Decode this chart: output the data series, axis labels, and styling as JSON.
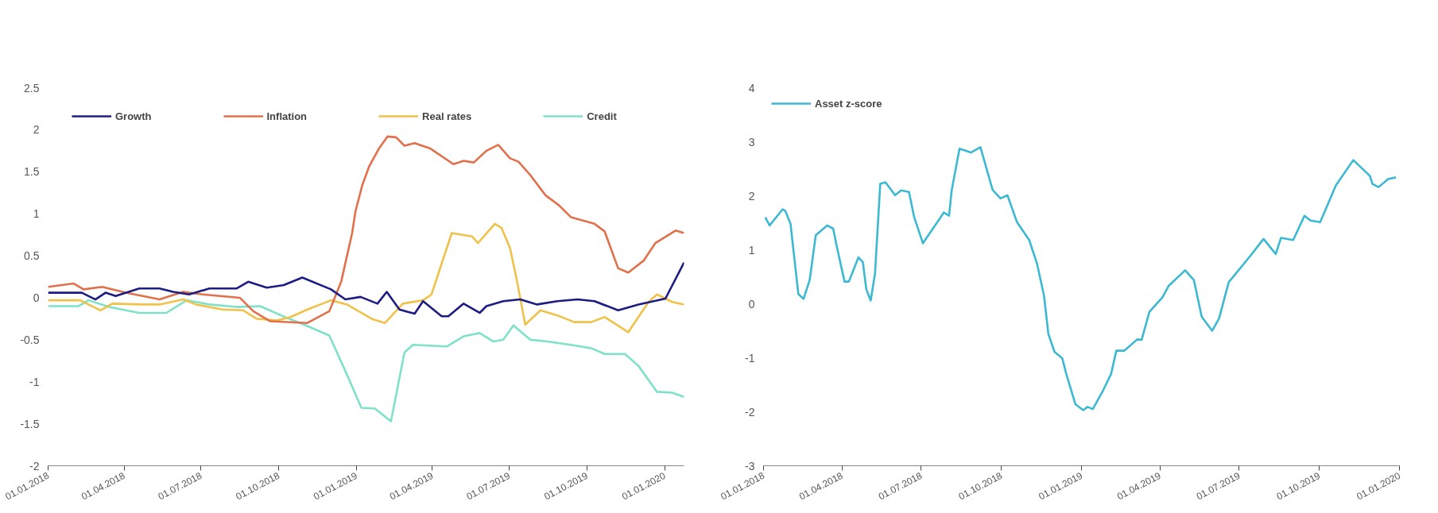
{
  "chart_data": [
    {
      "type": "line",
      "legend": "top",
      "xlim": [
        "2018-01-01",
        "2020-01-24"
      ],
      "ylim": [
        -2,
        2.5
      ],
      "xticks": [
        {
          "value": "2018-01-01",
          "label": "01.01.2018"
        },
        {
          "value": "2018-04-01",
          "label": "01.04.2018"
        },
        {
          "value": "2018-07-01",
          "label": "01.07.2018"
        },
        {
          "value": "2018-10-01",
          "label": "01.10.2018"
        },
        {
          "value": "2019-01-01",
          "label": "01.01.2019"
        },
        {
          "value": "2019-04-01",
          "label": "01.04.2019"
        },
        {
          "value": "2019-07-01",
          "label": "01.07.2019"
        },
        {
          "value": "2019-10-01",
          "label": "01.10.2019"
        },
        {
          "value": "2020-01-01",
          "label": "01.01.2020"
        }
      ],
      "yticks": [
        -2,
        -1.5,
        -1,
        -0.5,
        0,
        0.5,
        1,
        1.5,
        2,
        2.5
      ],
      "series": [
        {
          "name": "Growth",
          "color": "#1c1c84",
          "x": [
            "2018-01-01",
            "2018-02-10",
            "2018-02-26",
            "2018-03-10",
            "2018-03-22",
            "2018-04-19",
            "2018-05-13",
            "2018-05-29",
            "2018-06-17",
            "2018-07-11",
            "2018-08-12",
            "2018-08-26",
            "2018-09-17",
            "2018-10-07",
            "2018-10-29",
            "2018-12-02",
            "2018-12-19",
            "2019-01-06",
            "2019-01-26",
            "2019-02-06",
            "2019-02-21",
            "2019-03-11",
            "2019-03-21",
            "2019-04-12",
            "2019-04-20",
            "2019-05-08",
            "2019-05-27",
            "2019-06-04",
            "2019-06-24",
            "2019-07-14",
            "2019-08-03",
            "2019-08-27",
            "2019-09-20",
            "2019-10-10",
            "2019-11-07",
            "2019-12-01",
            "2020-01-02",
            "2020-01-24"
          ],
          "values": [
            0.06,
            0.06,
            -0.02,
            0.06,
            0.02,
            0.11,
            0.11,
            0.07,
            0.04,
            0.11,
            0.11,
            0.19,
            0.12,
            0.15,
            0.24,
            0.1,
            -0.02,
            0.01,
            -0.07,
            0.07,
            -0.14,
            -0.19,
            -0.04,
            -0.22,
            -0.22,
            -0.07,
            -0.18,
            -0.1,
            -0.04,
            -0.02,
            -0.08,
            -0.04,
            -0.02,
            -0.04,
            -0.15,
            -0.08,
            -0.01,
            0.42
          ]
        },
        {
          "name": "Inflation",
          "color": "#e2704a",
          "x": [
            "2018-01-01",
            "2018-01-31",
            "2018-02-12",
            "2018-03-06",
            "2018-04-03",
            "2018-05-13",
            "2018-06-10",
            "2018-07-03",
            "2018-08-16",
            "2018-09-01",
            "2018-09-21",
            "2018-11-04",
            "2018-11-30",
            "2018-12-14",
            "2018-12-27",
            "2018-12-31",
            "2019-01-08",
            "2019-01-16",
            "2019-01-28",
            "2019-02-07",
            "2019-02-17",
            "2019-02-27",
            "2019-03-11",
            "2019-03-29",
            "2019-04-26",
            "2019-05-08",
            "2019-05-20",
            "2019-06-04",
            "2019-06-18",
            "2019-07-02",
            "2019-07-12",
            "2019-07-26",
            "2019-08-13",
            "2019-08-29",
            "2019-09-12",
            "2019-10-10",
            "2019-10-22",
            "2019-11-07",
            "2019-11-19",
            "2019-12-07",
            "2019-12-21",
            "2020-01-14",
            "2020-01-24"
          ],
          "values": [
            0.13,
            0.17,
            0.1,
            0.13,
            0.06,
            -0.02,
            0.07,
            0.04,
            0.0,
            -0.16,
            -0.28,
            -0.3,
            -0.16,
            0.19,
            0.77,
            1.03,
            1.34,
            1.56,
            1.78,
            1.92,
            1.91,
            1.81,
            1.84,
            1.78,
            1.59,
            1.63,
            1.61,
            1.75,
            1.82,
            1.66,
            1.62,
            1.46,
            1.22,
            1.1,
            0.96,
            0.88,
            0.79,
            0.35,
            0.3,
            0.44,
            0.65,
            0.8,
            0.77
          ]
        },
        {
          "name": "Real rates",
          "color": "#f0c24a",
          "x": [
            "2018-01-01",
            "2018-02-08",
            "2018-03-04",
            "2018-03-18",
            "2018-04-23",
            "2018-05-13",
            "2018-06-10",
            "2018-06-25",
            "2018-07-27",
            "2018-08-20",
            "2018-09-05",
            "2018-09-29",
            "2018-10-15",
            "2018-11-04",
            "2018-12-02",
            "2018-12-21",
            "2019-01-19",
            "2019-02-04",
            "2019-02-25",
            "2019-03-21",
            "2019-03-31",
            "2019-04-24",
            "2019-05-18",
            "2019-05-25",
            "2019-06-14",
            "2019-06-22",
            "2019-07-02",
            "2019-07-10",
            "2019-07-20",
            "2019-08-07",
            "2019-08-27",
            "2019-09-16",
            "2019-10-06",
            "2019-10-22",
            "2019-11-19",
            "2019-12-13",
            "2019-12-23",
            "2020-01-10",
            "2020-01-24"
          ],
          "values": [
            -0.03,
            -0.03,
            -0.15,
            -0.07,
            -0.08,
            -0.08,
            -0.02,
            -0.08,
            -0.14,
            -0.15,
            -0.25,
            -0.27,
            -0.23,
            -0.14,
            -0.03,
            -0.08,
            -0.25,
            -0.3,
            -0.07,
            -0.03,
            0.04,
            0.77,
            0.73,
            0.65,
            0.88,
            0.83,
            0.59,
            0.21,
            -0.32,
            -0.15,
            -0.21,
            -0.29,
            -0.29,
            -0.23,
            -0.41,
            -0.05,
            0.04,
            -0.05,
            -0.08
          ]
        },
        {
          "name": "Credit",
          "color": "#7fe2c8",
          "x": [
            "2018-01-01",
            "2018-02-06",
            "2018-02-18",
            "2018-03-14",
            "2018-04-19",
            "2018-05-21",
            "2018-06-14",
            "2018-07-11",
            "2018-08-12",
            "2018-09-09",
            "2018-10-11",
            "2018-10-31",
            "2018-11-30",
            "2018-12-18",
            "2019-01-07",
            "2019-01-23",
            "2019-02-11",
            "2019-02-27",
            "2019-03-09",
            "2019-04-18",
            "2019-05-08",
            "2019-05-27",
            "2019-06-12",
            "2019-06-24",
            "2019-07-06",
            "2019-07-26",
            "2019-08-15",
            "2019-09-12",
            "2019-10-06",
            "2019-10-22",
            "2019-11-15",
            "2019-12-01",
            "2019-12-23",
            "2020-01-10",
            "2020-01-24"
          ],
          "values": [
            -0.1,
            -0.1,
            -0.03,
            -0.11,
            -0.18,
            -0.18,
            -0.03,
            -0.08,
            -0.11,
            -0.1,
            -0.24,
            -0.32,
            -0.45,
            -0.85,
            -1.31,
            -1.32,
            -1.47,
            -0.65,
            -0.56,
            -0.58,
            -0.46,
            -0.42,
            -0.52,
            -0.5,
            -0.33,
            -0.5,
            -0.52,
            -0.56,
            -0.6,
            -0.67,
            -0.67,
            -0.81,
            -1.12,
            -1.13,
            -1.18
          ]
        }
      ]
    },
    {
      "type": "line",
      "legend": "top left",
      "xlim": [
        "2018-01-01",
        "2020-01-01"
      ],
      "ylim": [
        -3,
        4
      ],
      "xticks": [
        {
          "value": "2018-01-01",
          "label": "01.01.2018"
        },
        {
          "value": "2018-04-01",
          "label": "01.04.2018"
        },
        {
          "value": "2018-07-01",
          "label": "01.07.2018"
        },
        {
          "value": "2018-10-01",
          "label": "01.10.2018"
        },
        {
          "value": "2019-01-01",
          "label": "01.01.2019"
        },
        {
          "value": "2019-04-01",
          "label": "01.04.2019"
        },
        {
          "value": "2019-07-01",
          "label": "01.07.2019"
        },
        {
          "value": "2019-10-01",
          "label": "01.10.2019"
        },
        {
          "value": "2020-01-01",
          "label": "01.01.2020"
        }
      ],
      "yticks": [
        -3,
        -2,
        -1,
        0,
        1,
        2,
        3,
        4
      ],
      "series": [
        {
          "name": "Asset z-score",
          "color": "#3cb9d2",
          "x": [
            "2018-01-03",
            "2018-01-08",
            "2018-01-14",
            "2018-01-23",
            "2018-01-26",
            "2018-02-01",
            "2018-02-10",
            "2018-02-16",
            "2018-02-23",
            "2018-03-02",
            "2018-03-15",
            "2018-03-22",
            "2018-03-26",
            "2018-04-04",
            "2018-04-09",
            "2018-04-20",
            "2018-04-25",
            "2018-04-29",
            "2018-05-04",
            "2018-05-09",
            "2018-05-15",
            "2018-05-21",
            "2018-06-01",
            "2018-06-08",
            "2018-06-17",
            "2018-06-23",
            "2018-07-03",
            "2018-07-22",
            "2018-07-27",
            "2018-08-02",
            "2018-08-05",
            "2018-08-14",
            "2018-08-27",
            "2018-09-07",
            "2018-09-21",
            "2018-09-30",
            "2018-10-08",
            "2018-10-19",
            "2018-11-02",
            "2018-11-11",
            "2018-11-19",
            "2018-11-24",
            "2018-12-01",
            "2018-12-10",
            "2018-12-14",
            "2018-12-25",
            "2019-01-03",
            "2019-01-08",
            "2019-01-14",
            "2019-01-26",
            "2019-02-04",
            "2019-02-10",
            "2019-02-19",
            "2019-03-06",
            "2019-03-11",
            "2019-03-20",
            "2019-04-04",
            "2019-04-11",
            "2019-04-30",
            "2019-05-10",
            "2019-05-19",
            "2019-05-31",
            "2019-06-08",
            "2019-06-19",
            "2019-07-14",
            "2019-07-29",
            "2019-08-12",
            "2019-08-18",
            "2019-09-01",
            "2019-09-14",
            "2019-09-21",
            "2019-10-02",
            "2019-10-20",
            "2019-11-09",
            "2019-11-28",
            "2019-12-01",
            "2019-12-08",
            "2019-12-19",
            "2019-12-28"
          ],
          "values": [
            1.6,
            1.45,
            1.57,
            1.75,
            1.72,
            1.48,
            0.18,
            0.09,
            0.44,
            1.27,
            1.45,
            1.39,
            1.07,
            0.41,
            0.41,
            0.86,
            0.77,
            0.27,
            0.06,
            0.56,
            2.22,
            2.25,
            2.01,
            2.1,
            2.07,
            1.6,
            1.12,
            1.57,
            1.69,
            1.63,
            2.1,
            2.87,
            2.8,
            2.9,
            2.11,
            1.95,
            2.01,
            1.51,
            1.18,
            0.74,
            0.15,
            -0.56,
            -0.89,
            -1.01,
            -1.27,
            -1.86,
            -1.97,
            -1.91,
            -1.95,
            -1.6,
            -1.3,
            -0.87,
            -0.87,
            -0.66,
            -0.67,
            -0.15,
            0.12,
            0.33,
            0.62,
            0.44,
            -0.24,
            -0.5,
            -0.27,
            0.4,
            0.89,
            1.2,
            0.92,
            1.22,
            1.18,
            1.63,
            1.54,
            1.51,
            2.19,
            2.66,
            2.37,
            2.22,
            2.16,
            2.31,
            2.34
          ]
        }
      ]
    }
  ]
}
